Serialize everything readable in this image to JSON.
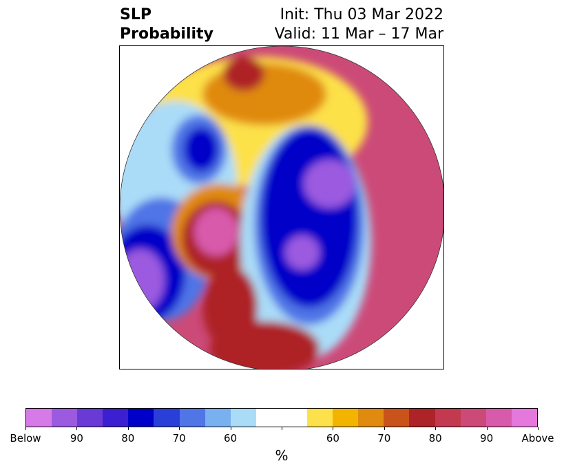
{
  "title": {
    "left_line1": "SLP",
    "left_line2": "Probability",
    "right_line1": "Init: Thu 03 Mar 2022",
    "right_line2": "Valid: 11 Mar – 17 Mar"
  },
  "colorbar": {
    "colors": [
      "#d67ae8",
      "#9b5ae0",
      "#6a3ad6",
      "#3c1fd0",
      "#0000c8",
      "#2a3fd8",
      "#4f75e6",
      "#78b0f0",
      "#aadcf8",
      "#ffffff",
      "#ffffff",
      "#fde14a",
      "#f3b400",
      "#e08a10",
      "#c9531b",
      "#ae2328",
      "#c23950",
      "#cc4a78",
      "#d85aaa",
      "#e578dd"
    ],
    "labels": [
      "Below",
      "90",
      "80",
      "70",
      "60",
      "",
      "60",
      "70",
      "80",
      "90",
      "Above"
    ],
    "units": "%"
  },
  "map": {
    "colors": {
      "below_weak": "#aadcf8",
      "below_mid": "#4f75e6",
      "below_strong": "#0000c8",
      "below_max": "#9b5ae0",
      "above_weak": "#fde14a",
      "above_mid": "#e08a10",
      "above_strong": "#ae2328",
      "above_max": "#cc4a78",
      "above_extreme": "#d85aaa"
    }
  }
}
